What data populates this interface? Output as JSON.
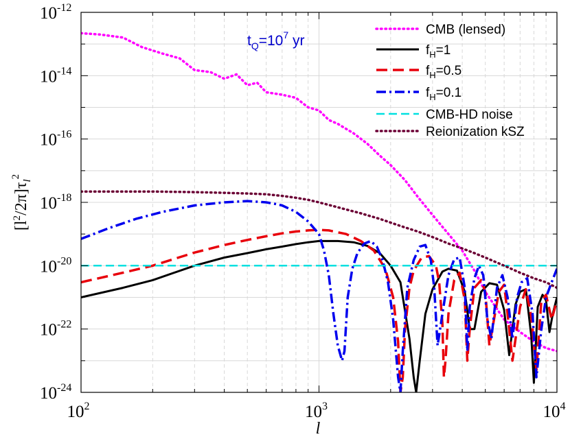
{
  "chart_data": {
    "type": "line",
    "xscale": "log",
    "yscale": "log",
    "xlim": [
      100,
      10000
    ],
    "ylim": [
      1e-24,
      1e-12
    ],
    "grid": true,
    "legend_position": "top-right",
    "xlabel": "l",
    "ylabel": {
      "main": "[l",
      "sup1": "2",
      "mid": "/2π]τ",
      "sub": "l",
      "sup2": "2"
    },
    "x_ticks": [
      {
        "base": "10",
        "exp": "2",
        "value": 100
      },
      {
        "base": "10",
        "exp": "3",
        "value": 1000
      },
      {
        "base": "10",
        "exp": "4",
        "value": 10000
      }
    ],
    "y_ticks": [
      {
        "base": "10",
        "exp": "-24",
        "value": 1e-24
      },
      {
        "base": "10",
        "exp": "-22",
        "value": 1e-22
      },
      {
        "base": "10",
        "exp": "-20",
        "value": 1e-20
      },
      {
        "base": "10",
        "exp": "-18",
        "value": 1e-18
      },
      {
        "base": "10",
        "exp": "-16",
        "value": 1e-16
      },
      {
        "base": "10",
        "exp": "-14",
        "value": 1e-14
      },
      {
        "base": "10",
        "exp": "-12",
        "value": 1e-12
      }
    ],
    "annotation": {
      "pre": "t",
      "sub": "Q",
      "mid": "=10",
      "sup": "7",
      "post": " yr",
      "color": "#0000cc"
    },
    "series": [
      {
        "key": "cmb",
        "name": "CMB (lensed)",
        "color": "#ff00ff",
        "dash": "dotted",
        "x": [
          100,
          120,
          150,
          180,
          220,
          260,
          300,
          350,
          400,
          450,
          500,
          550,
          600,
          700,
          800,
          900,
          1000,
          1100,
          1200,
          1400,
          1600,
          1800,
          2000,
          2300,
          2600,
          3000,
          3500,
          4000,
          4500,
          5000,
          6000,
          7000,
          8000,
          9000,
          10000
        ],
        "y": [
          2.2e-13,
          2e-13,
          1.6e-13,
          8e-14,
          5e-14,
          3.5e-14,
          1.5e-14,
          1.3e-14,
          8e-15,
          1.1e-14,
          5e-15,
          6e-15,
          3e-15,
          2.5e-15,
          2e-15,
          1e-15,
          8e-16,
          4e-16,
          3e-16,
          1.5e-16,
          7e-17,
          3e-17,
          1.5e-17,
          5e-18,
          1.5e-18,
          4e-19,
          1e-19,
          3e-20,
          7e-21,
          1.5e-21,
          2e-22,
          8e-23,
          4e-23,
          2.5e-23,
          2e-23
        ]
      },
      {
        "key": "fh1",
        "name": "f_H=1",
        "label": {
          "pre": "f",
          "sub": "H",
          "post": "=1"
        },
        "color": "#000000",
        "dash": "solid",
        "x": [
          100,
          150,
          200,
          300,
          400,
          500,
          600,
          700,
          800,
          900,
          1000,
          1200,
          1400,
          1600,
          1800,
          2000,
          2200,
          2400,
          2500,
          2560,
          2650,
          2800,
          3000,
          3300,
          3500,
          3800,
          4100,
          4300,
          4500,
          4800,
          5200,
          5600,
          6000,
          6300,
          6500,
          6700,
          7000,
          7400,
          7800,
          8000,
          8300,
          8700,
          9000,
          9300,
          9600,
          10000
        ],
        "y": [
          1e-21,
          2e-21,
          3.5e-21,
          1e-20,
          1.8e-20,
          2.5e-20,
          3.3e-20,
          4e-20,
          4.8e-20,
          5.5e-20,
          6e-20,
          6e-20,
          5.5e-20,
          4.2e-20,
          2.5e-20,
          1e-20,
          3e-21,
          5e-23,
          3e-24,
          1e-24,
          1e-23,
          3e-22,
          1.8e-21,
          6.5e-21,
          8e-21,
          7e-21,
          1.5e-21,
          1e-22,
          1e-22,
          1.5e-21,
          2.8e-21,
          2.5e-21,
          4e-22,
          1.5e-23,
          1e-22,
          6e-22,
          1.5e-21,
          1.8e-21,
          6e-23,
          2e-24,
          5e-22,
          1.2e-21,
          8e-22,
          8e-23,
          3e-22,
          1e-21
        ]
      },
      {
        "key": "fh05",
        "name": "f_H=0.5",
        "label": {
          "pre": "f",
          "sub": "H",
          "post": "=0.5"
        },
        "color": "#e8000b",
        "dash": "dashed",
        "x": [
          100,
          150,
          200,
          300,
          400,
          500,
          600,
          700,
          800,
          900,
          1000,
          1100,
          1300,
          1500,
          1700,
          1900,
          2050,
          2150,
          2200,
          2250,
          2300,
          2400,
          2500,
          2700,
          2900,
          3100,
          3200,
          3300,
          3350,
          3400,
          3500,
          3700,
          3900,
          4100,
          4200,
          4300,
          4500,
          4800,
          5000,
          5200,
          5400,
          5700,
          6000,
          6200,
          6500,
          7000,
          7400,
          7800,
          8200,
          8600,
          9000,
          9500,
          10000
        ],
        "y": [
          3e-21,
          6e-21,
          1e-20,
          2.6e-20,
          4.5e-20,
          6.5e-20,
          8.5e-20,
          1.05e-19,
          1.2e-19,
          1.3e-19,
          1.35e-19,
          1.3e-19,
          1e-19,
          6e-20,
          3e-20,
          8e-21,
          1e-21,
          4e-23,
          1e-24,
          3e-24,
          1e-22,
          2e-21,
          7e-21,
          1.8e-20,
          2e-20,
          1e-20,
          3e-21,
          1.5e-22,
          3e-24,
          1e-23,
          3e-22,
          3.5e-21,
          6e-21,
          8e-22,
          1e-23,
          1e-22,
          2e-21,
          3.5e-21,
          1.5e-21,
          3e-23,
          1.5e-22,
          1.5e-21,
          2.5e-21,
          3e-22,
          1e-23,
          5e-22,
          1.8e-21,
          2.5e-22,
          5e-24,
          8e-22,
          1.2e-21,
          2e-22,
          8e-22
        ]
      },
      {
        "key": "fh01",
        "name": "f_H=0.1",
        "label": {
          "pre": "f",
          "sub": "H",
          "post": "=0.1"
        },
        "color": "#0000ee",
        "dash": "dashdot",
        "x": [
          100,
          130,
          170,
          220,
          300,
          400,
          500,
          600,
          650,
          700,
          800,
          900,
          1000,
          1050,
          1100,
          1150,
          1200,
          1250,
          1280,
          1320,
          1380,
          1450,
          1550,
          1650,
          1750,
          1850,
          1950,
          2050,
          2150,
          2200,
          2250,
          2350,
          2500,
          2650,
          2800,
          2950,
          3050,
          3150,
          3300,
          3500,
          3700,
          3900,
          4100,
          4200,
          4300,
          4500,
          4700,
          4900,
          5100,
          5300,
          5600,
          5900,
          6200,
          6500,
          6800,
          7100,
          7500,
          7900,
          8200,
          8600,
          9000,
          9500,
          10000
        ],
        "y": [
          7e-20,
          1.5e-19,
          3e-19,
          5e-19,
          8e-19,
          1e-18,
          1.1e-18,
          1e-18,
          9e-19,
          8e-19,
          5e-19,
          2.5e-19,
          1e-19,
          3e-20,
          5e-21,
          3e-22,
          3e-23,
          1e-23,
          2e-23,
          1e-21,
          8e-21,
          2.5e-20,
          5e-20,
          6e-20,
          4e-20,
          1.5e-20,
          3e-21,
          2e-22,
          3e-24,
          1e-24,
          2e-23,
          2e-21,
          1.5e-20,
          4e-20,
          4.5e-20,
          1.5e-20,
          2e-21,
          3e-23,
          3e-22,
          5e-21,
          1.6e-20,
          1.8e-20,
          2e-21,
          2e-23,
          5e-22,
          4e-21,
          1e-20,
          5e-21,
          2e-22,
          5e-23,
          2e-21,
          5e-21,
          1e-21,
          5e-23,
          1e-21,
          3e-21,
          4e-21,
          3e-22,
          3e-24,
          1e-22,
          1e-21,
          3e-21,
          8e-21
        ]
      },
      {
        "key": "noise",
        "name": "CMB-HD noise",
        "color": "#00e0e0",
        "dash": "dashed",
        "x": [
          100,
          10000
        ],
        "y": [
          1e-20,
          1e-20
        ]
      },
      {
        "key": "ksz",
        "name": "Reionization kSZ",
        "color": "#6b0034",
        "dash": "dotted",
        "x": [
          100,
          150,
          200,
          300,
          400,
          500,
          600,
          700,
          800,
          900,
          1000,
          1200,
          1500,
          1800,
          2200,
          2600,
          3000,
          3500,
          4000,
          4500,
          5000,
          6000,
          7000,
          8000,
          9000,
          10000
        ],
        "y": [
          2.2e-18,
          2.2e-18,
          2.2e-18,
          2.1e-18,
          2e-18,
          1.9e-18,
          1.8e-18,
          1.6e-18,
          1.4e-18,
          1.2e-18,
          1e-18,
          7e-19,
          4.5e-19,
          3e-19,
          1.8e-19,
          1.2e-19,
          8e-20,
          5e-20,
          3.5e-20,
          2.5e-20,
          1.8e-20,
          1e-20,
          6e-21,
          4e-21,
          3e-21,
          2e-21
        ]
      }
    ]
  }
}
